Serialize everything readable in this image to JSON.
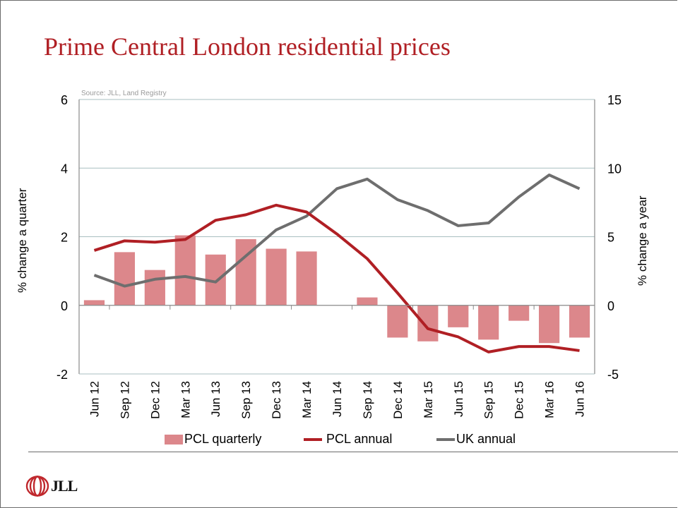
{
  "slide": {
    "title": "Prime Central London residential prices",
    "source": "Source: JLL, Land Registry",
    "logo_text": "JLL",
    "logo_icon": "jll-rings-logo-icon"
  },
  "colors": {
    "title": "#b01f24",
    "bar": "#dc878b",
    "pcl_annual": "#b01f24",
    "uk_annual": "#6e6e6e",
    "grid": "#a9bfc0"
  },
  "chart_data": {
    "type": "bar",
    "title": "Prime Central London residential prices",
    "xlabel": "",
    "ylabel": "% change a quarter",
    "y2label": "% change a year",
    "ylim": [
      -2,
      6
    ],
    "y2lim": [
      -5,
      15
    ],
    "yticks": [
      "6",
      "4",
      "2",
      "0",
      "-2"
    ],
    "y2ticks": [
      "15",
      "10",
      "5",
      "0",
      "-5"
    ],
    "grid": true,
    "legend_position": "bottom",
    "categories": [
      "Jun 12",
      "Sep 12",
      "Dec 12",
      "Mar 13",
      "Jun 13",
      "Sep 13",
      "Dec 13",
      "Mar 14",
      "Jun 14",
      "Sep 14",
      "Dec 14",
      "Mar 15",
      "Jun 15",
      "Sep 15",
      "Dec 15",
      "Mar 16",
      "Jun 16"
    ],
    "series": [
      {
        "name": "PCL quarterly",
        "type": "bar",
        "axis": "left",
        "values": [
          0.15,
          1.55,
          1.03,
          2.04,
          1.48,
          1.93,
          1.65,
          1.57,
          0.0,
          0.23,
          -0.94,
          -1.05,
          -0.64,
          -1.0,
          -0.45,
          -1.1,
          -0.94
        ]
      },
      {
        "name": "PCL annual",
        "type": "line",
        "axis": "right",
        "values": [
          4.0,
          4.7,
          4.6,
          4.8,
          6.2,
          6.6,
          7.3,
          6.8,
          5.2,
          3.4,
          0.9,
          -1.7,
          -2.3,
          -3.4,
          -3.0,
          -3.0,
          -3.3
        ]
      },
      {
        "name": "UK annual",
        "type": "line",
        "axis": "right",
        "values": [
          2.2,
          1.4,
          1.9,
          2.1,
          1.7,
          3.6,
          5.5,
          6.5,
          8.5,
          9.2,
          7.7,
          6.9,
          5.8,
          6.0,
          7.9,
          9.5,
          8.5
        ]
      }
    ]
  }
}
